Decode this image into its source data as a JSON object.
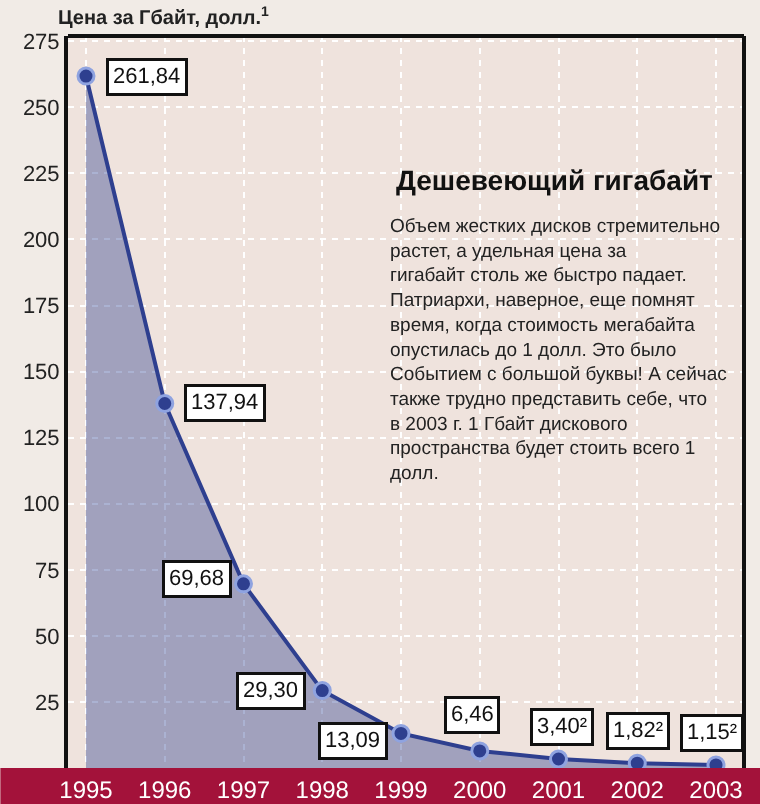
{
  "chart_data": {
    "type": "area",
    "title": "Дешевеющий гигабайт",
    "ylabel": "Цена за Гбайт, долл.$^{1}$",
    "annotations": [
      "Объем жестких дисков стремительно растет, а удельная цена за гигабайт столь же быстро падает. Патриархи, наверное, еще помнят время, когда стоимость мегабайта опустилась до 1 долл. Это было Событием с большой буквы! А сейчас также трудно представить себе, что в 2003 г. 1 Гбайт дискового пространства будет стоить всего 1 долл."
    ],
    "categories": [
      "1995",
      "1996",
      "1997",
      "1998",
      "1999",
      "2000",
      "2001",
      "2002",
      "2003"
    ],
    "series": [
      {
        "color": "#2e3f8f",
        "values": [
          261.84,
          137.94,
          69.68,
          29.3,
          13.09,
          6.46,
          3.4,
          1.82,
          1.15
        ],
        "value_labels": [
          "261,84",
          "137,94",
          "69,68",
          "29,30",
          "13,09",
          "6,46",
          "3,40²",
          "1,82²",
          "1,15²"
        ]
      }
    ],
    "ylim": [
      0,
      277
    ],
    "yticks": [
      25,
      50,
      75,
      100,
      125,
      150,
      175,
      200,
      225,
      250,
      275
    ],
    "grid": true,
    "marker": "circle",
    "line_style": "solid"
  }
}
